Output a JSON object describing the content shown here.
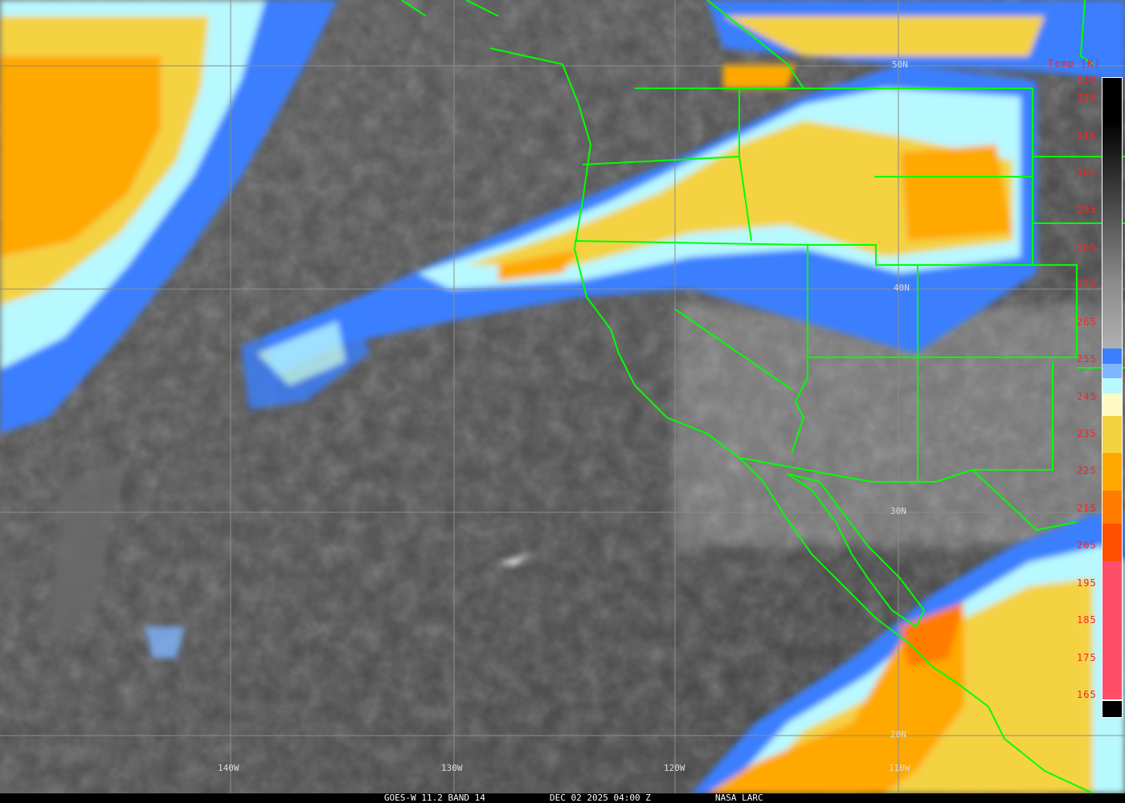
{
  "caption": {
    "product": "GOES-W 11.2 BAND 14",
    "datetime": "DEC 02 2025 04:00 Z",
    "source": "NASA LARC"
  },
  "colorbar": {
    "title": "Temp [K]",
    "labels": [
      "330",
      "325",
      "315",
      "305",
      "295",
      "285",
      "275",
      "265",
      "255",
      "245",
      "235",
      "225",
      "215",
      "205",
      "195",
      "185",
      "175",
      "165"
    ],
    "range_k": [
      165,
      330
    ],
    "colors": {
      "warm_top": "#000000",
      "mid_gray": "#8a8a8a",
      "light_gray": "#b0b0b0",
      "blue": "#3a7fff",
      "light_blue": "#80b6ff",
      "cyan": "#b8f8ff",
      "pale_yellow": "#fffac4",
      "yellow": "#f4d242",
      "orange": "#ffa800",
      "dark_orange": "#ff7c00",
      "red_orange": "#ff5000",
      "pink": "#ff4f68"
    }
  },
  "grid": {
    "longitudes": [
      "140W",
      "130W",
      "120W",
      "110W"
    ],
    "latitudes": [
      "50N",
      "40N",
      "30N",
      "20N"
    ]
  },
  "overlay_color": "#00ff00"
}
